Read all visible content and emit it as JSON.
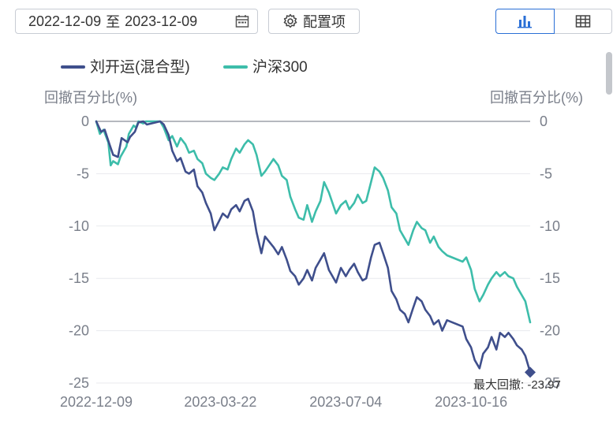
{
  "toolbar": {
    "date_start": "2022-12-09",
    "date_sep": "至",
    "date_end": "2023-12-09",
    "config_label": "配置项"
  },
  "chart_data": {
    "type": "line",
    "y_axis_title_left": "回撤百分比(%)",
    "y_axis_title_right": "回撤百分比(%)",
    "ylim": [
      -25,
      0
    ],
    "y_ticks": [
      0,
      -5,
      -10,
      -15,
      -20,
      -25
    ],
    "x_ticks": [
      "2022-12-09",
      "2023-03-22",
      "2023-07-04",
      "2023-10-16"
    ],
    "x_range": [
      "2022-12-09",
      "2023-12-04"
    ],
    "legend_position": "top-left",
    "grid": true,
    "series": [
      {
        "name": "刘开运(混合型)",
        "color": "#3f4f8c",
        "points": [
          [
            "2022-12-09",
            0
          ],
          [
            "2022-12-13",
            -1
          ],
          [
            "2022-12-16",
            -0.8
          ],
          [
            "2022-12-20",
            -2.2
          ],
          [
            "2022-12-23",
            -3.2
          ],
          [
            "2022-12-27",
            -3.4
          ],
          [
            "2022-12-30",
            -1.6
          ],
          [
            "2023-01-04",
            -2.0
          ],
          [
            "2023-01-06",
            -1.5
          ],
          [
            "2023-01-10",
            -1.0
          ],
          [
            "2023-01-13",
            -0.1
          ],
          [
            "2023-01-17",
            0
          ],
          [
            "2023-01-20",
            -0.3
          ],
          [
            "2023-01-31",
            0
          ],
          [
            "2023-02-03",
            -0.3
          ],
          [
            "2023-02-07",
            -1.3
          ],
          [
            "2023-02-10",
            -2.8
          ],
          [
            "2023-02-14",
            -3.8
          ],
          [
            "2023-02-17",
            -3.5
          ],
          [
            "2023-02-21",
            -4.8
          ],
          [
            "2023-02-24",
            -5.0
          ],
          [
            "2023-02-28",
            -4.6
          ],
          [
            "2023-03-03",
            -6.2
          ],
          [
            "2023-03-07",
            -6.8
          ],
          [
            "2023-03-10",
            -7.8
          ],
          [
            "2023-03-14",
            -8.8
          ],
          [
            "2023-03-17",
            -10.4
          ],
          [
            "2023-03-21",
            -9.5
          ],
          [
            "2023-03-24",
            -8.8
          ],
          [
            "2023-03-28",
            -9.2
          ],
          [
            "2023-03-31",
            -8.4
          ],
          [
            "2023-04-04",
            -8.0
          ],
          [
            "2023-04-07",
            -8.6
          ],
          [
            "2023-04-11",
            -7.6
          ],
          [
            "2023-04-14",
            -7.4
          ],
          [
            "2023-04-18",
            -8.6
          ],
          [
            "2023-04-21",
            -10.6
          ],
          [
            "2023-04-25",
            -12.6
          ],
          [
            "2023-04-28",
            -11.0
          ],
          [
            "2023-05-05",
            -12.0
          ],
          [
            "2023-05-09",
            -12.7
          ],
          [
            "2023-05-12",
            -12.0
          ],
          [
            "2023-05-16",
            -13.2
          ],
          [
            "2023-05-19",
            -14.3
          ],
          [
            "2023-05-23",
            -14.8
          ],
          [
            "2023-05-26",
            -15.6
          ],
          [
            "2023-05-30",
            -15.0
          ],
          [
            "2023-06-02",
            -14.2
          ],
          [
            "2023-06-06",
            -15.2
          ],
          [
            "2023-06-09",
            -14.0
          ],
          [
            "2023-06-13",
            -13.2
          ],
          [
            "2023-06-16",
            -12.6
          ],
          [
            "2023-06-20",
            -14.2
          ],
          [
            "2023-06-26",
            -15.4
          ],
          [
            "2023-06-30",
            -14.0
          ],
          [
            "2023-07-04",
            -14.8
          ],
          [
            "2023-07-07",
            -14.2
          ],
          [
            "2023-07-11",
            -13.6
          ],
          [
            "2023-07-14",
            -14.4
          ],
          [
            "2023-07-18",
            -15.2
          ],
          [
            "2023-07-21",
            -15.0
          ],
          [
            "2023-07-25",
            -13.0
          ],
          [
            "2023-07-28",
            -11.8
          ],
          [
            "2023-08-01",
            -11.6
          ],
          [
            "2023-08-04",
            -12.6
          ],
          [
            "2023-08-08",
            -14.0
          ],
          [
            "2023-08-11",
            -16.2
          ],
          [
            "2023-08-15",
            -17.0
          ],
          [
            "2023-08-18",
            -18.0
          ],
          [
            "2023-08-22",
            -18.4
          ],
          [
            "2023-08-25",
            -19.2
          ],
          [
            "2023-08-29",
            -17.8
          ],
          [
            "2023-09-01",
            -16.8
          ],
          [
            "2023-09-05",
            -17.2
          ],
          [
            "2023-09-08",
            -18.0
          ],
          [
            "2023-09-12",
            -18.6
          ],
          [
            "2023-09-15",
            -19.4
          ],
          [
            "2023-09-19",
            -19.0
          ],
          [
            "2023-09-22",
            -20.0
          ],
          [
            "2023-09-26",
            -19.0
          ],
          [
            "2023-10-09",
            -19.6
          ],
          [
            "2023-10-12",
            -20.8
          ],
          [
            "2023-10-16",
            -21.6
          ],
          [
            "2023-10-19",
            -22.8
          ],
          [
            "2023-10-23",
            -23.6
          ],
          [
            "2023-10-26",
            -22.2
          ],
          [
            "2023-10-30",
            -21.6
          ],
          [
            "2023-11-02",
            -20.6
          ],
          [
            "2023-11-06",
            -21.8
          ],
          [
            "2023-11-09",
            -20.2
          ],
          [
            "2023-11-13",
            -20.6
          ],
          [
            "2023-11-16",
            -20.2
          ],
          [
            "2023-11-20",
            -20.8
          ],
          [
            "2023-11-23",
            -21.4
          ],
          [
            "2023-11-27",
            -21.8
          ],
          [
            "2023-11-30",
            -22.4
          ],
          [
            "2023-12-04",
            -23.97
          ]
        ]
      },
      {
        "name": "沪深300",
        "color": "#3dbdaa",
        "points": [
          [
            "2022-12-09",
            0
          ],
          [
            "2022-12-12",
            -1.2
          ],
          [
            "2022-12-15",
            -0.8
          ],
          [
            "2022-12-19",
            -2.0
          ],
          [
            "2022-12-21",
            -4.2
          ],
          [
            "2022-12-23",
            -3.8
          ],
          [
            "2022-12-27",
            -4.1
          ],
          [
            "2022-12-29",
            -3.4
          ],
          [
            "2023-01-03",
            -2.4
          ],
          [
            "2023-01-05",
            -1.2
          ],
          [
            "2023-01-09",
            -0.4
          ],
          [
            "2023-01-11",
            -0.6
          ],
          [
            "2023-01-13",
            0
          ],
          [
            "2023-01-17",
            -0.2
          ],
          [
            "2023-01-19",
            0
          ],
          [
            "2023-01-31",
            0
          ],
          [
            "2023-02-03",
            -0.6
          ],
          [
            "2023-02-07",
            -1.8
          ],
          [
            "2023-02-10",
            -1.4
          ],
          [
            "2023-02-14",
            -2.4
          ],
          [
            "2023-02-17",
            -1.6
          ],
          [
            "2023-02-21",
            -2.2
          ],
          [
            "2023-02-24",
            -3.0
          ],
          [
            "2023-02-28",
            -2.8
          ],
          [
            "2023-03-03",
            -3.6
          ],
          [
            "2023-03-07",
            -4.0
          ],
          [
            "2023-03-10",
            -5.0
          ],
          [
            "2023-03-14",
            -5.4
          ],
          [
            "2023-03-17",
            -5.6
          ],
          [
            "2023-03-21",
            -5.0
          ],
          [
            "2023-03-24",
            -4.4
          ],
          [
            "2023-03-28",
            -4.6
          ],
          [
            "2023-03-31",
            -3.6
          ],
          [
            "2023-04-04",
            -2.6
          ],
          [
            "2023-04-07",
            -3.0
          ],
          [
            "2023-04-11",
            -2.2
          ],
          [
            "2023-04-14",
            -1.8
          ],
          [
            "2023-04-18",
            -2.2
          ],
          [
            "2023-04-21",
            -3.2
          ],
          [
            "2023-04-25",
            -5.2
          ],
          [
            "2023-04-28",
            -4.8
          ],
          [
            "2023-05-05",
            -3.6
          ],
          [
            "2023-05-09",
            -4.2
          ],
          [
            "2023-05-12",
            -5.2
          ],
          [
            "2023-05-16",
            -5.6
          ],
          [
            "2023-05-19",
            -7.2
          ],
          [
            "2023-05-23",
            -8.4
          ],
          [
            "2023-05-26",
            -9.2
          ],
          [
            "2023-05-30",
            -9.4
          ],
          [
            "2023-06-02",
            -8.0
          ],
          [
            "2023-06-06",
            -9.6
          ],
          [
            "2023-06-09",
            -8.6
          ],
          [
            "2023-06-13",
            -7.6
          ],
          [
            "2023-06-16",
            -5.8
          ],
          [
            "2023-06-20",
            -6.8
          ],
          [
            "2023-06-26",
            -8.8
          ],
          [
            "2023-06-30",
            -8.0
          ],
          [
            "2023-07-04",
            -7.6
          ],
          [
            "2023-07-07",
            -8.4
          ],
          [
            "2023-07-11",
            -7.8
          ],
          [
            "2023-07-14",
            -7.0
          ],
          [
            "2023-07-18",
            -7.8
          ],
          [
            "2023-07-21",
            -7.6
          ],
          [
            "2023-07-25",
            -5.8
          ],
          [
            "2023-07-28",
            -4.4
          ],
          [
            "2023-08-01",
            -4.8
          ],
          [
            "2023-08-04",
            -5.4
          ],
          [
            "2023-08-08",
            -6.6
          ],
          [
            "2023-08-11",
            -8.2
          ],
          [
            "2023-08-15",
            -8.8
          ],
          [
            "2023-08-18",
            -10.4
          ],
          [
            "2023-08-22",
            -11.2
          ],
          [
            "2023-08-25",
            -11.8
          ],
          [
            "2023-08-29",
            -10.4
          ],
          [
            "2023-09-01",
            -9.6
          ],
          [
            "2023-09-05",
            -10.2
          ],
          [
            "2023-09-08",
            -10.4
          ],
          [
            "2023-09-12",
            -11.6
          ],
          [
            "2023-09-15",
            -11.0
          ],
          [
            "2023-09-19",
            -12.0
          ],
          [
            "2023-09-22",
            -12.4
          ],
          [
            "2023-09-26",
            -12.8
          ],
          [
            "2023-10-09",
            -13.4
          ],
          [
            "2023-10-12",
            -13.0
          ],
          [
            "2023-10-16",
            -14.2
          ],
          [
            "2023-10-19",
            -16.0
          ],
          [
            "2023-10-23",
            -17.2
          ],
          [
            "2023-10-26",
            -16.6
          ],
          [
            "2023-10-30",
            -15.6
          ],
          [
            "2023-11-02",
            -15.0
          ],
          [
            "2023-11-06",
            -14.4
          ],
          [
            "2023-11-09",
            -14.8
          ],
          [
            "2023-11-13",
            -14.4
          ],
          [
            "2023-11-16",
            -14.8
          ],
          [
            "2023-11-20",
            -15.0
          ],
          [
            "2023-11-23",
            -15.8
          ],
          [
            "2023-11-27",
            -16.6
          ],
          [
            "2023-11-30",
            -17.2
          ],
          [
            "2023-12-04",
            -19.2
          ]
        ]
      }
    ],
    "max_drawdown_label": "最大回撤: -23.97",
    "max_drawdown_value": -23.97
  }
}
